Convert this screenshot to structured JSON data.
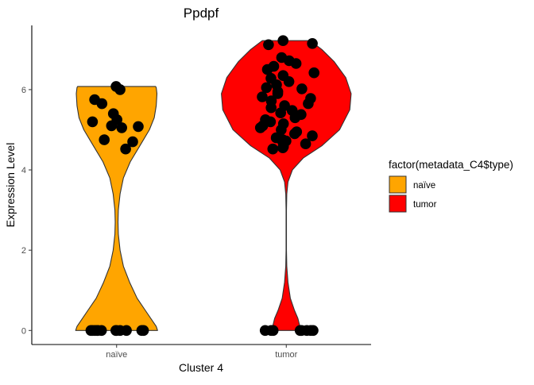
{
  "chart_data": {
    "type": "violin",
    "title": "Ppdpf",
    "xlabel": "Cluster 4",
    "ylabel": "Expression Level",
    "categories": [
      "naïve",
      "tumor"
    ],
    "ylim": [
      -0.35,
      7.6
    ],
    "yticks": [
      0,
      2,
      4,
      6
    ],
    "ytick_labels": [
      "0",
      "2",
      "4",
      "6"
    ],
    "legend": {
      "title": "factor(metadata_C4$type)",
      "position": "right",
      "entries": [
        {
          "label": "naïve",
          "color": "#FFA500"
        },
        {
          "label": "tumor",
          "color": "#FF0000"
        }
      ]
    },
    "violins": [
      {
        "category": "naïve",
        "color": "#FFA500",
        "profile": [
          [
            0.0,
            0.6
          ],
          [
            0.1,
            0.58
          ],
          [
            0.25,
            0.52
          ],
          [
            0.5,
            0.42
          ],
          [
            0.8,
            0.3
          ],
          [
            1.2,
            0.19
          ],
          [
            1.6,
            0.1
          ],
          [
            2.0,
            0.05
          ],
          [
            2.4,
            0.025
          ],
          [
            2.7,
            0.02
          ],
          [
            3.0,
            0.025
          ],
          [
            3.4,
            0.05
          ],
          [
            3.8,
            0.1
          ],
          [
            4.2,
            0.2
          ],
          [
            4.6,
            0.34
          ],
          [
            5.0,
            0.48
          ],
          [
            5.3,
            0.55
          ],
          [
            5.6,
            0.58
          ],
          [
            5.9,
            0.59
          ],
          [
            6.05,
            0.58
          ],
          [
            6.08,
            0.57
          ]
        ],
        "points": [
          6.08,
          6.0,
          5.75,
          5.65,
          5.4,
          5.25,
          5.2,
          5.08,
          5.05,
          5.1,
          4.75,
          4.7,
          4.52,
          0,
          0,
          0,
          0,
          0,
          0,
          0,
          0,
          0,
          0,
          0,
          0
        ]
      },
      {
        "category": "tumor",
        "color": "#FF0000",
        "profile": [
          [
            0.0,
            0.2
          ],
          [
            0.1,
            0.2
          ],
          [
            0.3,
            0.17
          ],
          [
            0.5,
            0.12
          ],
          [
            0.8,
            0.06
          ],
          [
            1.2,
            0.025
          ],
          [
            1.6,
            0.007
          ],
          [
            2.0,
            0.003
          ],
          [
            3.0,
            0.003
          ],
          [
            3.4,
            0.008
          ],
          [
            3.7,
            0.025
          ],
          [
            4.0,
            0.09
          ],
          [
            4.3,
            0.25
          ],
          [
            4.6,
            0.52
          ],
          [
            5.0,
            0.78
          ],
          [
            5.5,
            0.93
          ],
          [
            5.9,
            0.95
          ],
          [
            6.3,
            0.87
          ],
          [
            6.7,
            0.7
          ],
          [
            7.0,
            0.52
          ],
          [
            7.22,
            0.35
          ]
        ],
        "points": [
          7.22,
          7.15,
          7.12,
          6.8,
          6.72,
          6.65,
          6.58,
          6.5,
          6.42,
          6.35,
          6.28,
          6.2,
          6.12,
          6.05,
          6.02,
          5.95,
          5.9,
          5.82,
          5.78,
          5.72,
          5.65,
          5.6,
          5.55,
          5.48,
          5.42,
          5.38,
          5.3,
          5.25,
          5.2,
          5.15,
          5.1,
          5.05,
          5.0,
          4.95,
          4.9,
          4.85,
          4.8,
          4.75,
          4.72,
          4.7,
          4.65,
          4.58,
          4.55,
          4.52,
          0,
          0,
          0,
          0,
          0,
          0,
          0,
          0
        ]
      }
    ]
  }
}
